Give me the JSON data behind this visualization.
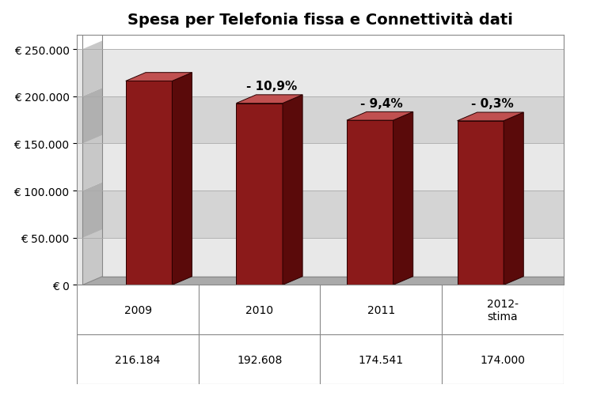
{
  "title": "Spesa per Telefonia fissa e Connettività dati",
  "categories": [
    "2009",
    "2010",
    "2011",
    "2012-\nstima"
  ],
  "values": [
    216184,
    192608,
    174541,
    174000
  ],
  "value_labels": [
    "216.184",
    "192.608",
    "174.541",
    "174.000"
  ],
  "pct_labels": [
    "",
    "- 10,9%",
    "- 9,4%",
    "- 0,3%"
  ],
  "bar_color_front": "#8B1A1A",
  "bar_color_top": "#C05050",
  "bar_color_side": "#5A0A0A",
  "ylim": [
    0,
    265000
  ],
  "yticks": [
    0,
    50000,
    100000,
    150000,
    200000,
    250000
  ],
  "ytick_labels": [
    "€ 0",
    "€ 50.000",
    "€ 100.000",
    "€ 150.000",
    "€ 200.000",
    "€ 250.000"
  ],
  "title_fontsize": 14,
  "label_fontsize": 11,
  "tick_fontsize": 10,
  "band_colors": [
    "#E8E8E8",
    "#D4D4D4"
  ],
  "left_wall_colors": [
    "#C8C8C8",
    "#B0B0B0"
  ],
  "floor_color": "#AAAAAA",
  "border_color": "#888888"
}
